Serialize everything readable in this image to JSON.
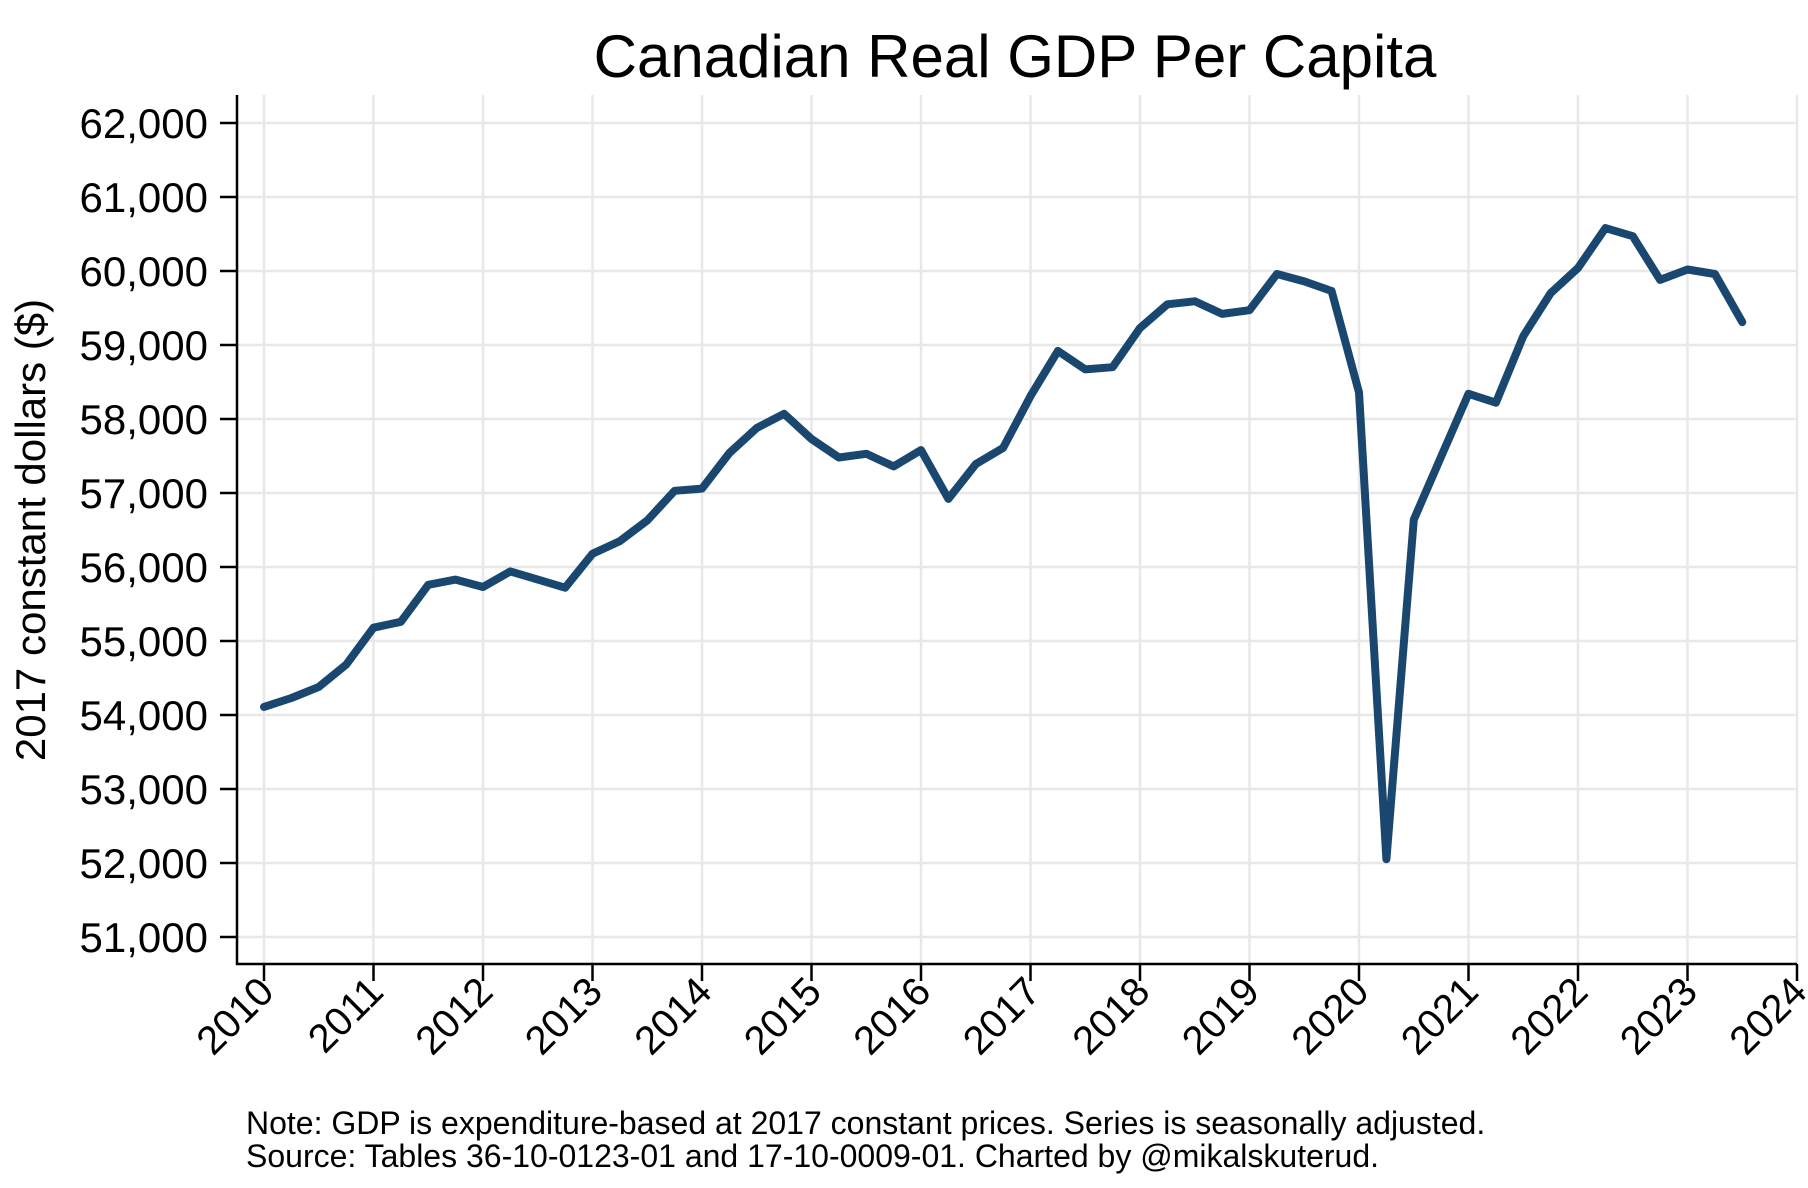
{
  "chart_data": {
    "type": "line",
    "title": "Canadian Real GDP Per Capita",
    "xlabel": "",
    "ylabel": "2017 constant dollars ($)",
    "xlim": [
      2010,
      2024
    ],
    "ylim": [
      50600,
      62350
    ],
    "grid": true,
    "legend": "none",
    "x_ticks": [
      2010,
      2011,
      2012,
      2013,
      2014,
      2015,
      2016,
      2017,
      2018,
      2019,
      2020,
      2021,
      2022,
      2023,
      2024
    ],
    "x_tick_labels": [
      "2010",
      "2011",
      "2012",
      "2013",
      "2014",
      "2015",
      "2016",
      "2017",
      "2018",
      "2019",
      "2020",
      "2021",
      "2022",
      "2023",
      "2024"
    ],
    "y_ticks": [
      51000,
      52000,
      53000,
      54000,
      55000,
      56000,
      57000,
      58000,
      59000,
      60000,
      61000,
      62000
    ],
    "y_tick_labels": [
      "51,000",
      "52,000",
      "53,000",
      "54,000",
      "55,000",
      "56,000",
      "57,000",
      "58,000",
      "59,000",
      "60,000",
      "61,000",
      "62,000"
    ],
    "series": [
      {
        "name": "Real GDP per capita",
        "color": "#1a476f",
        "frequency": "quarterly",
        "x": [
          2010.0,
          2010.25,
          2010.5,
          2010.75,
          2011.0,
          2011.25,
          2011.5,
          2011.75,
          2012.0,
          2012.25,
          2012.5,
          2012.75,
          2013.0,
          2013.25,
          2013.5,
          2013.75,
          2014.0,
          2014.25,
          2014.5,
          2014.75,
          2015.0,
          2015.25,
          2015.5,
          2015.75,
          2016.0,
          2016.25,
          2016.5,
          2016.75,
          2017.0,
          2017.25,
          2017.5,
          2017.75,
          2018.0,
          2018.25,
          2018.5,
          2018.75,
          2019.0,
          2019.25,
          2019.5,
          2019.75,
          2020.0,
          2020.25,
          2020.5,
          2020.75,
          2021.0,
          2021.25,
          2021.5,
          2021.75,
          2022.0,
          2022.25,
          2022.5,
          2022.75,
          2023.0,
          2023.25,
          2023.5
        ],
        "values": [
          54110,
          54230,
          54380,
          54680,
          55180,
          55260,
          55760,
          55830,
          55730,
          55940,
          55830,
          55720,
          56180,
          56350,
          56630,
          57030,
          57060,
          57540,
          57880,
          58070,
          57730,
          57480,
          57530,
          57360,
          57580,
          56920,
          57390,
          57610,
          58310,
          58920,
          58670,
          58700,
          59230,
          59550,
          59590,
          59420,
          59470,
          59960,
          59860,
          59730,
          58360,
          52050,
          56640,
          57490,
          58340,
          58220,
          59120,
          59700,
          60040,
          60580,
          60470,
          59880,
          60020,
          59960,
          59310
        ]
      }
    ],
    "notes": [
      "Note: GDP is expenditure-based at 2017 constant prices. Series is seasonally adjusted.",
      "Source: Tables 36-10-0123-01 and 17-10-0009-01. Charted by @mikalskuterud."
    ]
  }
}
